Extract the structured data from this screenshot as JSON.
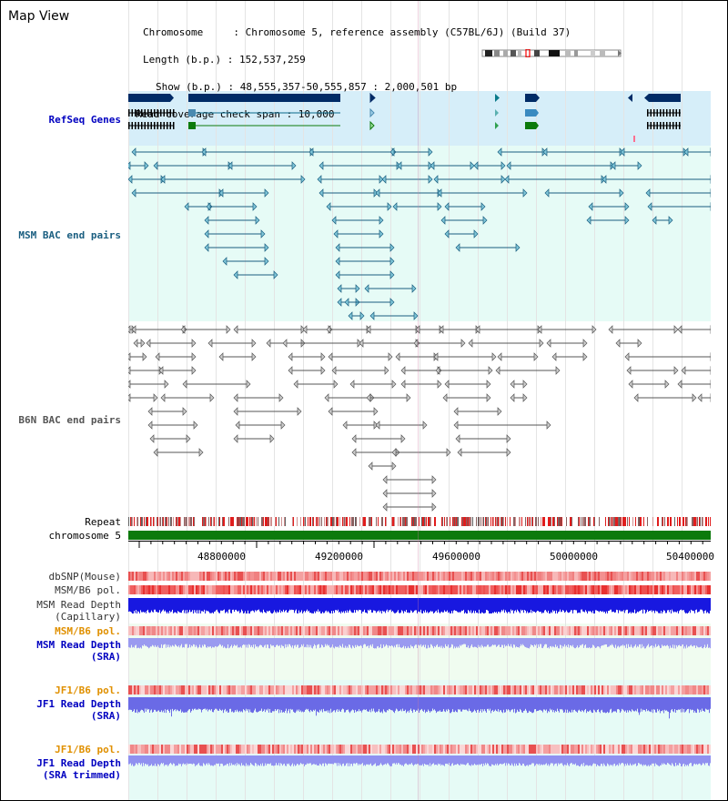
{
  "header": {
    "title": "Map View",
    "info_lines": [
      "Chromosome     : Chromosome 5, reference assembly (C57BL/6J) (Build 37)",
      "Length (b.p.) : 152,537,259",
      "Show (b.p.) : 48,555,357-50,555,857 : 2,000,501 bp",
      "Read coverage check span : 10,000"
    ]
  },
  "tracks": {
    "refseq": "RefSeq Genes",
    "msm_bac": "MSM BAC end pairs",
    "b6n_bac": "B6N BAC end pairs",
    "repeat": "Repeat",
    "chromosome": "chromosome 5",
    "dbsnp": "dbSNP(Mouse)",
    "msm_b6_pol_1": "MSM/B6 pol.",
    "msm_depth_cap_1": "MSM Read Depth",
    "msm_depth_cap_2": "(Capillary)",
    "msm_b6_pol_2": "MSM/B6 pol.",
    "msm_depth_sra_1": "MSM Read Depth",
    "msm_depth_sra_2": "(SRA)",
    "jf1_b6_pol_1": "JF1/B6 pol.",
    "jf1_depth_sra_1": "JF1 Read Depth",
    "jf1_depth_sra_2": "(SRA)",
    "jf1_b6_pol_2": "JF1/B6 pol.",
    "jf1_depth_trim_1": "JF1 Read Depth",
    "jf1_depth_trim_2": "(SRA trimmed)"
  },
  "axis": {
    "ticks": [
      "48800000",
      "49200000",
      "49600000",
      "50000000",
      "50400000"
    ]
  },
  "colors": {
    "refseq_label": "#0000c0",
    "msm_bac_label": "#1a5e80",
    "b6n_bac_label": "#555555",
    "orange_label": "#e09000",
    "blue_label": "#0000c0",
    "gene_dark": "#002b66",
    "chromosome": "#0c7a0c"
  }
}
